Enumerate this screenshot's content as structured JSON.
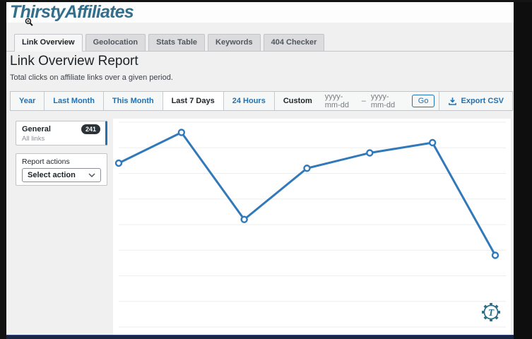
{
  "header": {
    "logo_text": "ThirstyAffiliates"
  },
  "tabs": {
    "items": [
      {
        "label": "Link Overview",
        "active": true
      },
      {
        "label": "Geolocation",
        "active": false
      },
      {
        "label": "Stats Table",
        "active": false
      },
      {
        "label": "Keywords",
        "active": false
      },
      {
        "label": "404 Checker",
        "active": false
      }
    ]
  },
  "report": {
    "title": "Link Overview Report",
    "subtitle": "Total clicks on affiliate links over a given period."
  },
  "filter_bar": {
    "periods": [
      {
        "label": "Year",
        "active": false
      },
      {
        "label": "Last Month",
        "active": false
      },
      {
        "label": "This Month",
        "active": false
      },
      {
        "label": "Last 7 Days",
        "active": true
      },
      {
        "label": "24 Hours",
        "active": false
      }
    ],
    "custom_label": "Custom",
    "date_from_placeholder": "yyyy-mm-dd",
    "date_range_separator": "–",
    "date_to_placeholder": "yyyy-mm-dd",
    "go_button": "Go",
    "export_button": "Export CSV"
  },
  "sidebar": {
    "general_card": {
      "title": "General",
      "subtitle": "All links",
      "badge_count": "241"
    },
    "actions_card": {
      "label": "Report actions",
      "selected_option": "Select action"
    }
  },
  "chart_data": {
    "type": "line",
    "title": "",
    "xlabel": "",
    "ylabel": "",
    "x": [
      1,
      2,
      3,
      4,
      5,
      6,
      7
    ],
    "values": [
      64,
      76,
      42,
      62,
      68,
      72,
      28
    ],
    "ylim": [
      0,
      82
    ],
    "gridline_values": [
      0,
      10,
      20,
      30,
      40,
      50,
      60,
      70,
      80
    ],
    "grid": true,
    "legend_position": "none",
    "axis_tick_labels_visible": false,
    "line_color": "#3179b9",
    "marker": "open-circle",
    "marker_fill": "#ffffff",
    "gridline_color": "#ededee"
  },
  "colors": {
    "logo_teal": "#336f8d",
    "accent_blue": "#2271b1",
    "badge_bg": "#2c3338",
    "bottom_bar_navy": "#1b2642",
    "chart_line_blue": "#3179b9"
  }
}
